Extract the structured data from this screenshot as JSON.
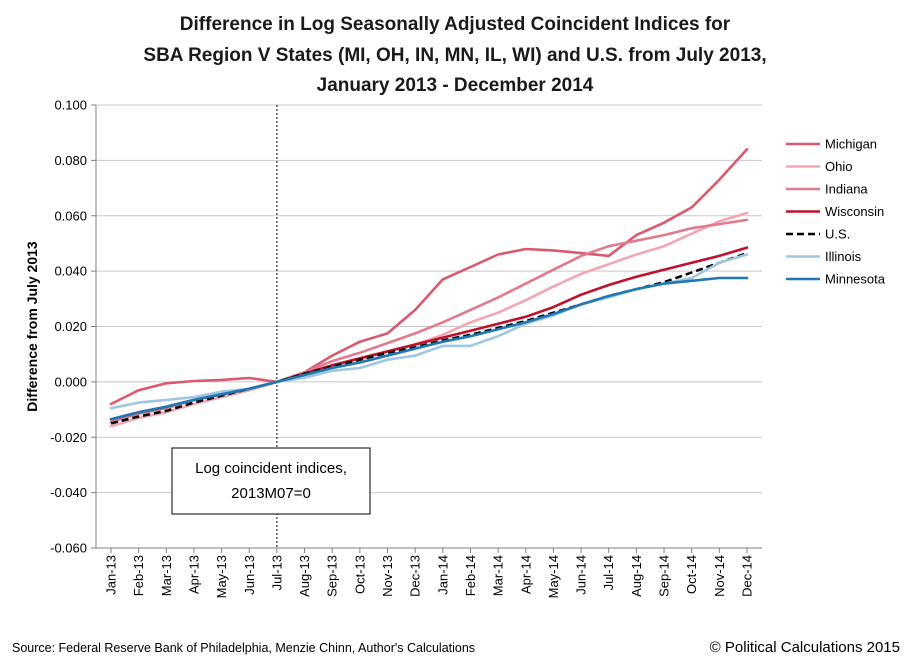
{
  "chart_data": {
    "type": "line",
    "title": [
      "Difference in Log Seasonally Adjusted Coincident Indices for",
      "SBA Region V States (MI, OH, IN, MN, IL, WI) and U.S. from July 2013,",
      "January 2013 - December 2014"
    ],
    "xlabel": "",
    "ylabel": "Difference from July 2013",
    "ylim": [
      -0.06,
      0.1
    ],
    "yticks": [
      -0.06,
      -0.04,
      -0.02,
      0.0,
      0.02,
      0.04,
      0.06,
      0.08,
      0.1
    ],
    "ytick_labels": [
      "-0.060",
      "-0.040",
      "-0.020",
      "0.000",
      "0.020",
      "0.040",
      "0.060",
      "0.080",
      "0.100"
    ],
    "grid": "horizontal",
    "legend_position": "right",
    "categories": [
      "Jan-13",
      "Feb-13",
      "Mar-13",
      "Apr-13",
      "May-13",
      "Jun-13",
      "Jul-13",
      "Aug-13",
      "Sep-13",
      "Oct-13",
      "Nov-13",
      "Dec-13",
      "Jan-14",
      "Feb-14",
      "Mar-14",
      "Apr-14",
      "May-14",
      "Jun-14",
      "Jul-14",
      "Aug-14",
      "Sep-14",
      "Oct-14",
      "Nov-14",
      "Dec-14"
    ],
    "reference_line": {
      "category": "Jul-13",
      "style": "dotted"
    },
    "annotation": {
      "lines": [
        "Log coincident indices,",
        "2013M07=0"
      ]
    },
    "series": [
      {
        "name": "Michigan",
        "color": "#d9596e",
        "dash": "solid",
        "values": [
          -0.008,
          -0.003,
          -0.0005,
          0.0003,
          0.0007,
          0.0014,
          0.0,
          0.0035,
          0.0095,
          0.0145,
          0.0175,
          0.026,
          0.037,
          0.0415,
          0.046,
          0.048,
          0.0475,
          0.0465,
          0.0455,
          0.053,
          0.0575,
          0.063,
          0.073,
          0.084
        ]
      },
      {
        "name": "Ohio",
        "color": "#f2a6b2",
        "dash": "solid",
        "values": [
          -0.016,
          -0.013,
          -0.011,
          -0.008,
          -0.0055,
          -0.003,
          0.0,
          0.003,
          0.006,
          0.008,
          0.011,
          0.0135,
          0.017,
          0.0215,
          0.025,
          0.0295,
          0.0345,
          0.039,
          0.0425,
          0.046,
          0.049,
          0.0535,
          0.058,
          0.061
        ]
      },
      {
        "name": "Indiana",
        "color": "#e07a8c",
        "dash": "solid",
        "values": [
          -0.0145,
          -0.0115,
          -0.0095,
          -0.0065,
          -0.0045,
          -0.0025,
          0.0,
          0.0035,
          0.0075,
          0.0105,
          0.014,
          0.0175,
          0.0215,
          0.026,
          0.0305,
          0.0355,
          0.0405,
          0.0455,
          0.049,
          0.051,
          0.053,
          0.0555,
          0.057,
          0.0585
        ]
      },
      {
        "name": "Wisconsin",
        "color": "#c0102c",
        "dash": "solid",
        "values": [
          -0.0135,
          -0.011,
          -0.009,
          -0.0065,
          -0.0045,
          -0.0025,
          0.0,
          0.003,
          0.006,
          0.0085,
          0.011,
          0.0135,
          0.016,
          0.0185,
          0.021,
          0.0235,
          0.027,
          0.0315,
          0.035,
          0.038,
          0.0405,
          0.043,
          0.0455,
          0.0485
        ]
      },
      {
        "name": "U.S.",
        "color": "#000000",
        "dash": "dashed",
        "values": [
          -0.015,
          -0.0125,
          -0.0105,
          -0.0075,
          -0.005,
          -0.0025,
          0.0,
          0.003,
          0.0055,
          0.008,
          0.0105,
          0.0125,
          0.015,
          0.017,
          0.0195,
          0.022,
          0.025,
          0.028,
          0.031,
          0.0335,
          0.036,
          0.0395,
          0.043,
          0.0465
        ]
      },
      {
        "name": "Illinois",
        "color": "#9fc6e2",
        "dash": "solid",
        "values": [
          -0.0095,
          -0.0075,
          -0.0065,
          -0.0055,
          -0.0035,
          -0.0025,
          0.0,
          0.0015,
          0.004,
          0.005,
          0.008,
          0.0095,
          0.013,
          0.013,
          0.0165,
          0.021,
          0.024,
          0.028,
          0.0305,
          0.0335,
          0.0355,
          0.0375,
          0.043,
          0.046
        ]
      },
      {
        "name": "Minnesota",
        "color": "#1f78b4",
        "dash": "solid",
        "values": [
          -0.0135,
          -0.011,
          -0.009,
          -0.0065,
          -0.0045,
          -0.0025,
          0.0,
          0.0025,
          0.005,
          0.007,
          0.0095,
          0.012,
          0.0145,
          0.0165,
          0.019,
          0.0215,
          0.0245,
          0.028,
          0.031,
          0.0335,
          0.0355,
          0.0365,
          0.0375,
          0.0375
        ]
      }
    ]
  },
  "footer": {
    "source": "Source: Federal Reserve Bank of Philadelphia, Menzie Chinn, Author's Calculations",
    "credit": "© Political Calculations 2015"
  }
}
